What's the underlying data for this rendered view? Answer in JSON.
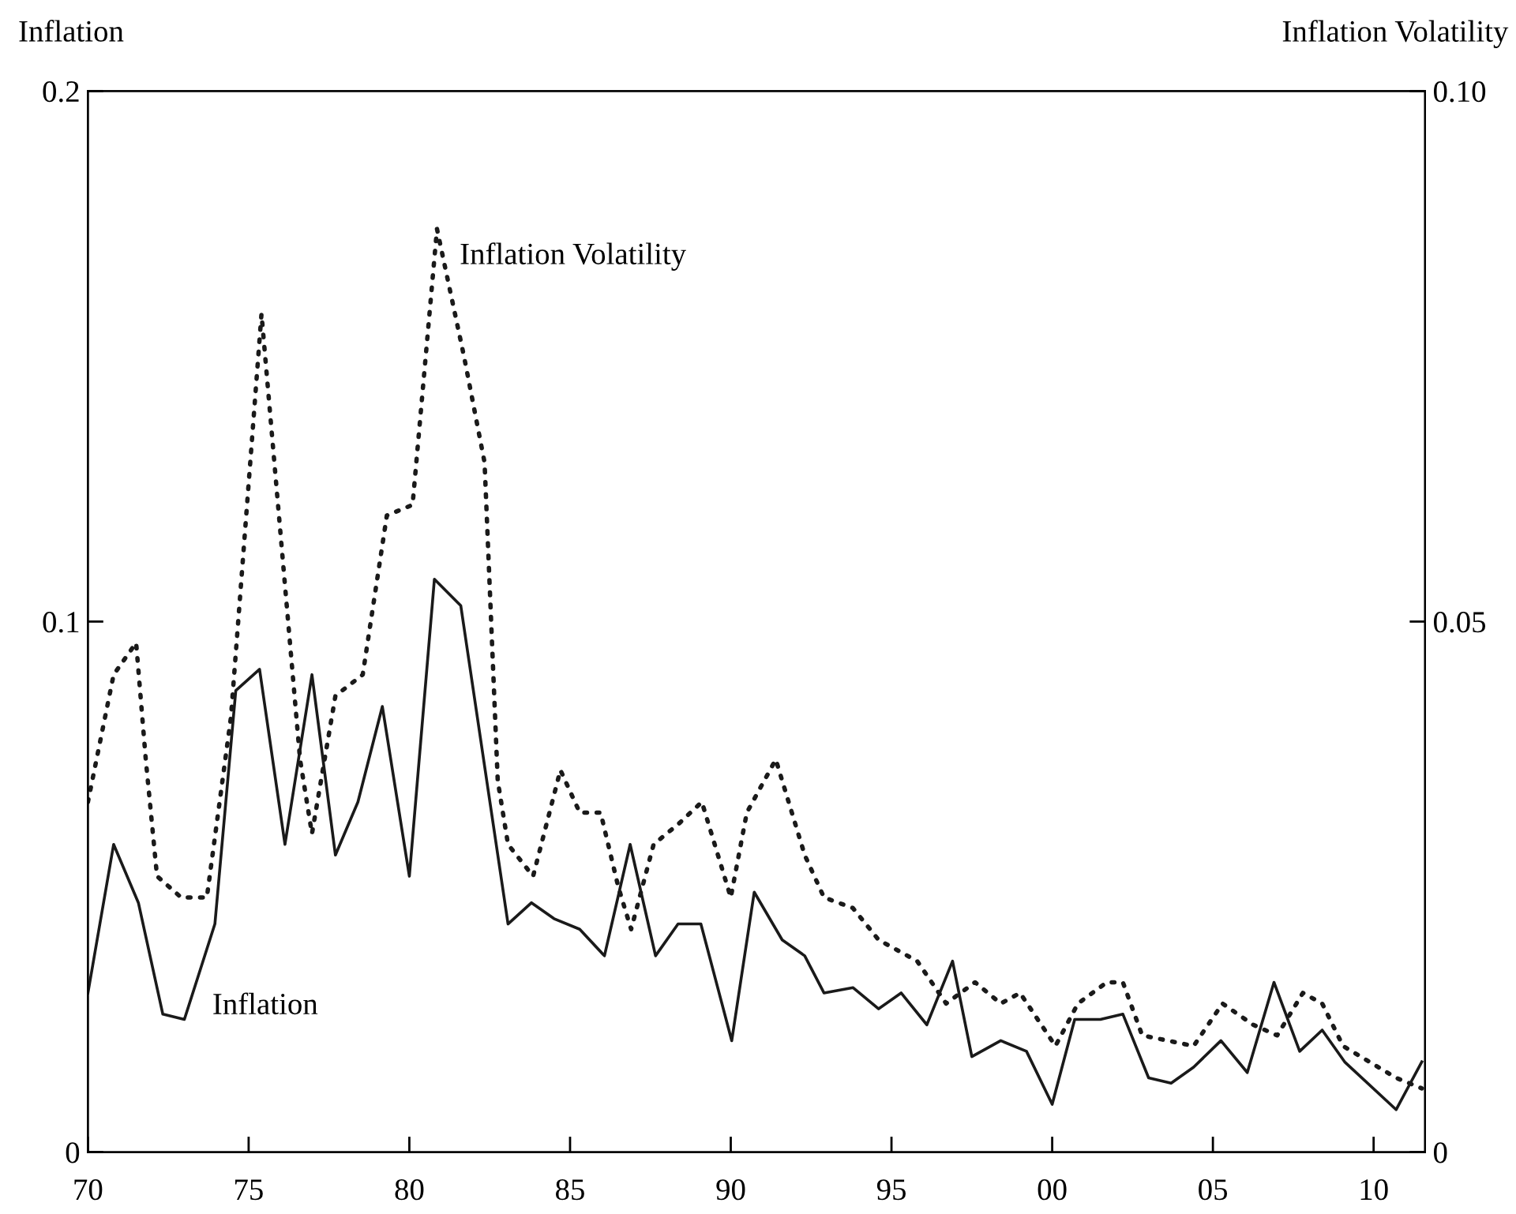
{
  "chart_data": {
    "type": "line",
    "ylabel": "Inflation",
    "y2label": "Inflation Volatility",
    "xlim": [
      1970,
      2011.6
    ],
    "xticks": [
      {
        "value": 1970,
        "label": "70"
      },
      {
        "value": 1975,
        "label": "75"
      },
      {
        "value": 1980,
        "label": "80"
      },
      {
        "value": 1985,
        "label": "85"
      },
      {
        "value": 1990,
        "label": "90"
      },
      {
        "value": 1995,
        "label": "95"
      },
      {
        "value": 2000,
        "label": "00"
      },
      {
        "value": 2005,
        "label": "05"
      },
      {
        "value": 2010,
        "label": "10"
      }
    ],
    "ylim": [
      0,
      0.2
    ],
    "yticks": [
      0,
      0.1,
      0.2
    ],
    "y2lim": [
      0,
      0.1
    ],
    "y2ticks": [
      0,
      0.05,
      {
        "value": 0.1,
        "label": "0.10"
      }
    ],
    "grid": false,
    "legend": false,
    "marker": "none",
    "series": [
      {
        "color": "#1a1a1a",
        "line_style": "solid",
        "x": [
          1970.0,
          1970.8,
          1971.57,
          1972.33,
          1973.0,
          1973.95,
          1974.6,
          1975.34,
          1976.13,
          1976.97,
          1977.7,
          1978.4,
          1979.16,
          1980.0,
          1980.78,
          1981.6,
          1983.07,
          1983.8,
          1984.5,
          1985.3,
          1986.07,
          1986.87,
          1987.66,
          1988.36,
          1989.07,
          1990.03,
          1990.73,
          1991.6,
          1992.3,
          1992.9,
          1993.8,
          1994.6,
          1995.3,
          1996.1,
          1996.9,
          1997.5,
          1998.4,
          1999.2,
          2000.0,
          2000.7,
          2001.5,
          2002.2,
          2003.0,
          2003.7,
          2004.4,
          2005.25,
          2006.07,
          2006.9,
          2007.7,
          2008.4,
          2009.1,
          2010.7,
          2011.5
        ],
        "values": [
          0.03,
          0.058,
          0.047,
          0.026,
          0.025,
          0.043,
          0.087,
          0.091,
          0.058,
          0.09,
          0.056,
          0.066,
          0.084,
          0.052,
          0.108,
          0.103,
          0.043,
          0.047,
          0.044,
          0.042,
          0.037,
          0.058,
          0.037,
          0.043,
          0.043,
          0.021,
          0.049,
          0.04,
          0.037,
          0.03,
          0.031,
          0.027,
          0.03,
          0.024,
          0.036,
          0.018,
          0.021,
          0.019,
          0.009,
          0.025,
          0.025,
          0.026,
          0.014,
          0.013,
          0.016,
          0.021,
          0.015,
          0.032,
          0.019,
          0.023,
          0.017,
          0.008,
          0.017
        ]
      },
      {
        "color": "#1a1a1a",
        "line_style": "dotted",
        "axis": "y2",
        "x": [
          1970.0,
          1970.8,
          1971.5,
          1971.8,
          1972.15,
          1972.9,
          1973.7,
          1974.45,
          1975.4,
          1976.6,
          1976.97,
          1977.7,
          1978.55,
          1979.3,
          1980.1,
          1980.86,
          1981.7,
          1982.34,
          1982.75,
          1983.07,
          1983.85,
          1984.7,
          1985.3,
          1985.95,
          1986.5,
          1986.9,
          1987.6,
          1988.4,
          1989.1,
          1990.0,
          1990.5,
          1991.4,
          1992.3,
          1992.9,
          1993.8,
          1994.6,
          1995.8,
          1996.7,
          1997.6,
          1998.4,
          1999.0,
          2000.1,
          2000.8,
          2001.7,
          2002.2,
          2002.8,
          2004.4,
          2005.3,
          2006.25,
          2007.0,
          2007.8,
          2008.4,
          2009.05,
          2010.7,
          2011.5
        ],
        "values": [
          0.033,
          0.045,
          0.048,
          0.037,
          0.026,
          0.024,
          0.024,
          0.041,
          0.079,
          0.037,
          0.03,
          0.043,
          0.045,
          0.06,
          0.061,
          0.087,
          0.075,
          0.065,
          0.035,
          0.029,
          0.026,
          0.036,
          0.032,
          0.032,
          0.025,
          0.021,
          0.029,
          0.031,
          0.033,
          0.024,
          0.032,
          0.037,
          0.028,
          0.024,
          0.023,
          0.02,
          0.018,
          0.014,
          0.016,
          0.014,
          0.015,
          0.01,
          0.014,
          0.016,
          0.016,
          0.011,
          0.01,
          0.014,
          0.012,
          0.011,
          0.015,
          0.014,
          0.01,
          0.007,
          0.006
        ]
      }
    ],
    "annotations": [
      "Inflation Volatility",
      "Inflation"
    ]
  }
}
